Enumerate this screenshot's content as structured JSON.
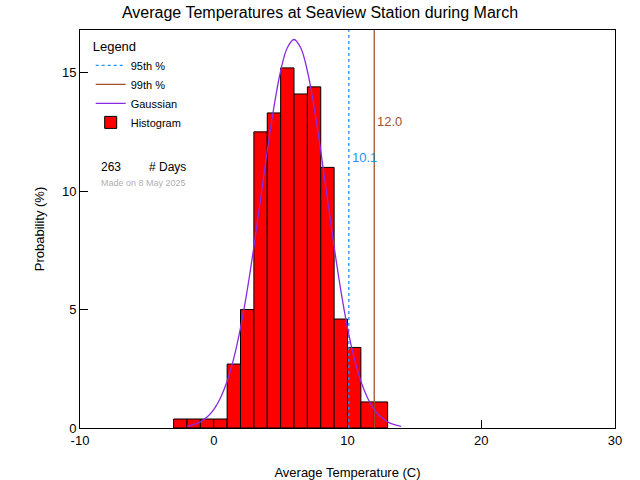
{
  "chart_data": {
    "type": "histogram",
    "title": "Average Temperatures at Seaview Station during March",
    "x_label": "Average Temperature (C)",
    "y_label": "Probability (%)",
    "legend_title": "Legend",
    "legend": "upper left",
    "grid": false,
    "xlim": [
      -10,
      30
    ],
    "xticks": [
      -10,
      0,
      10,
      20,
      30
    ],
    "ylim": [
      0,
      16.8
    ],
    "yticks": [
      0,
      5,
      10,
      15
    ],
    "series": [
      {
        "name": "95th %",
        "type": "vline",
        "color": "#1e90ff",
        "line_style": "dotted",
        "value": 10.1,
        "label": "10.1"
      },
      {
        "name": "99th %",
        "type": "vline",
        "color": "#a0522d",
        "line_style": "solid",
        "value": 12.0,
        "label": "12.0"
      },
      {
        "name": "Gaussian",
        "type": "line",
        "color": "#8a2be2",
        "line_style": "solid",
        "x": [
          -2,
          -1.5,
          -1,
          -0.5,
          0,
          0.5,
          1,
          1.5,
          2,
          2.5,
          3,
          3.5,
          4,
          4.5,
          5,
          5.5,
          6,
          6.5,
          7,
          7.5,
          8,
          8.5,
          9,
          9.5,
          10,
          10.5,
          11,
          11.5,
          12,
          12.5,
          13,
          13.5,
          14
        ],
        "values": [
          0.07,
          0.14,
          0.26,
          0.46,
          0.78,
          1.27,
          1.97,
          2.95,
          4.23,
          5.81,
          7.65,
          9.66,
          11.7,
          13.55,
          15.07,
          16.05,
          16.4,
          16.05,
          15.07,
          13.55,
          11.7,
          9.66,
          7.65,
          5.81,
          4.23,
          2.95,
          1.97,
          1.27,
          0.78,
          0.46,
          0.26,
          0.14,
          0.07
        ]
      },
      {
        "name": "Histogram",
        "type": "bar",
        "color": "#ff0000",
        "bins": [
          -3,
          -2,
          -1,
          0,
          1,
          2,
          3,
          4,
          5,
          6,
          7,
          8,
          9,
          10,
          11,
          12,
          13
        ],
        "values": [
          0.38,
          0.38,
          0.38,
          0.38,
          2.7,
          5.0,
          12.5,
          13.3,
          15.2,
          14.1,
          14.4,
          11.0,
          4.6,
          3.4,
          1.1,
          1.1
        ]
      }
    ],
    "days": {
      "value": 263,
      "label": "# Days"
    },
    "note": "Made on 8 May 2025"
  }
}
